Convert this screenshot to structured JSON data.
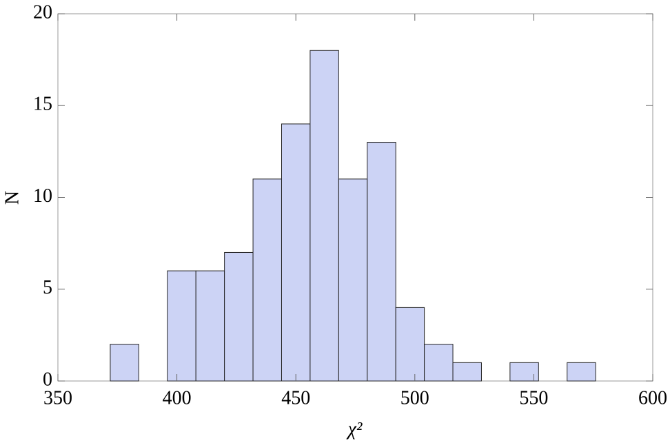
{
  "chart_data": {
    "type": "histogram",
    "xlabel": "χ²",
    "ylabel": "N",
    "bins": [
      372,
      384,
      396,
      408,
      420,
      432,
      444,
      456,
      468,
      480,
      492,
      504,
      516,
      528,
      540,
      552,
      564,
      576
    ],
    "values": [
      2,
      0,
      6,
      6,
      7,
      11,
      14,
      18,
      11,
      13,
      4,
      2,
      1,
      0,
      1,
      0,
      1
    ],
    "color": "#ccd3f5",
    "xlim": [
      350,
      600
    ],
    "xticks": [
      350,
      400,
      450,
      500,
      550,
      600
    ],
    "ylim": [
      0,
      20
    ],
    "yticks": [
      0,
      5,
      10,
      15,
      20
    ]
  }
}
